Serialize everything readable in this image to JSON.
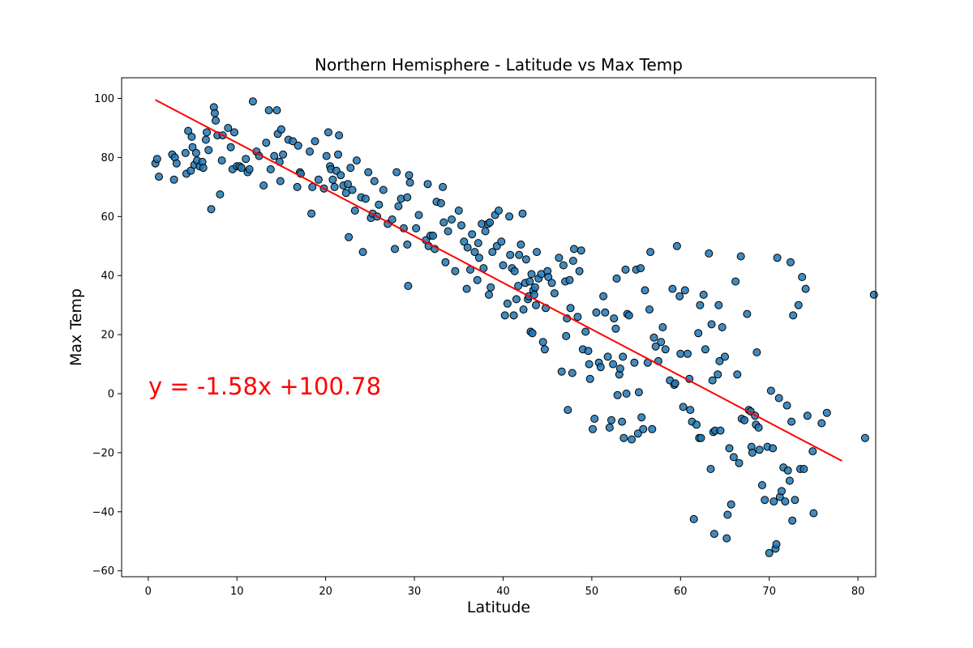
{
  "chart_data": {
    "type": "scatter",
    "title": "Northern Hemisphere - Latitude vs Max Temp",
    "xlabel": "Latitude",
    "ylabel": "Max Temp",
    "xlim": [
      -3,
      82
    ],
    "ylim": [
      -62,
      107
    ],
    "xticks": [
      0,
      10,
      20,
      30,
      40,
      50,
      60,
      70,
      80
    ],
    "yticks": [
      -60,
      -40,
      -20,
      0,
      20,
      40,
      60,
      80,
      100
    ],
    "grid": false,
    "point_color": "#1f77b4",
    "point_edge_color": "#000000",
    "line_color": "#ff0000",
    "regression": {
      "equation_text": "y = -1.58x +100.78",
      "slope": -1.58,
      "intercept": 100.78,
      "x_start": 0.8,
      "x_end": 78.2
    },
    "points": [
      [
        0.8,
        78
      ],
      [
        1,
        79.5
      ],
      [
        1.2,
        73.5
      ],
      [
        2.7,
        81
      ],
      [
        3,
        80
      ],
      [
        3.2,
        78
      ],
      [
        2.9,
        72.5
      ],
      [
        4.2,
        81.5
      ],
      [
        4.5,
        89
      ],
      [
        4.3,
        74.5
      ],
      [
        4.8,
        75.5
      ],
      [
        4.9,
        87
      ],
      [
        5,
        83.5
      ],
      [
        5.2,
        77.5
      ],
      [
        5.4,
        81.5
      ],
      [
        5.5,
        79
      ],
      [
        5.8,
        77
      ],
      [
        6.1,
        78.5
      ],
      [
        6.2,
        76.5
      ],
      [
        6.5,
        86
      ],
      [
        6.6,
        88.5
      ],
      [
        6.8,
        82.5
      ],
      [
        7.1,
        62.5
      ],
      [
        7.4,
        97
      ],
      [
        7.5,
        95
      ],
      [
        7.6,
        92.5
      ],
      [
        7.8,
        87.5
      ],
      [
        8.1,
        67.5
      ],
      [
        8.3,
        79
      ],
      [
        8.4,
        87.5
      ],
      [
        9,
        90
      ],
      [
        9.3,
        83.5
      ],
      [
        9.5,
        76
      ],
      [
        9.7,
        88.5
      ],
      [
        10,
        77
      ],
      [
        10.3,
        77
      ],
      [
        10.5,
        76.5
      ],
      [
        11,
        79.5
      ],
      [
        11.2,
        75
      ],
      [
        11.4,
        76
      ],
      [
        11.8,
        99
      ],
      [
        12.2,
        82
      ],
      [
        12.5,
        80.5
      ],
      [
        13,
        70.5
      ],
      [
        13.3,
        85
      ],
      [
        13.6,
        96
      ],
      [
        13.8,
        76
      ],
      [
        14.2,
        80.5
      ],
      [
        14.5,
        96
      ],
      [
        14.6,
        88
      ],
      [
        14.8,
        78.5
      ],
      [
        14.9,
        72
      ],
      [
        15,
        89.5
      ],
      [
        15.2,
        81
      ],
      [
        15.8,
        86
      ],
      [
        16.3,
        85.5
      ],
      [
        16.8,
        70
      ],
      [
        16.9,
        84
      ],
      [
        17.1,
        75
      ],
      [
        17.2,
        74.5
      ],
      [
        18.2,
        82
      ],
      [
        18.4,
        61
      ],
      [
        18.8,
        85.5
      ],
      [
        18.5,
        70
      ],
      [
        19.2,
        72.5
      ],
      [
        19.8,
        69.5
      ],
      [
        20.1,
        80.5
      ],
      [
        20.3,
        88.5
      ],
      [
        20.5,
        77
      ],
      [
        20.6,
        76
      ],
      [
        20.8,
        72.5
      ],
      [
        21,
        70
      ],
      [
        21.2,
        75.5
      ],
      [
        21.4,
        81
      ],
      [
        21.5,
        87.5
      ],
      [
        21.7,
        74
      ],
      [
        22,
        70.5
      ],
      [
        22.3,
        68
      ],
      [
        22.5,
        71
      ],
      [
        22.6,
        53
      ],
      [
        22.8,
        76.5
      ],
      [
        23,
        69
      ],
      [
        23.3,
        62
      ],
      [
        23.5,
        79
      ],
      [
        24,
        66.5
      ],
      [
        24.2,
        48
      ],
      [
        24.5,
        66
      ],
      [
        24.8,
        75
      ],
      [
        25.1,
        59.5
      ],
      [
        25.3,
        61
      ],
      [
        25.5,
        72
      ],
      [
        25.8,
        60
      ],
      [
        26,
        64
      ],
      [
        26.5,
        69
      ],
      [
        27,
        57.5
      ],
      [
        27.5,
        59
      ],
      [
        27.8,
        49
      ],
      [
        28,
        75
      ],
      [
        28.2,
        63.5
      ],
      [
        28.5,
        66
      ],
      [
        28.8,
        56
      ],
      [
        29.2,
        66.5
      ],
      [
        29.2,
        50.5
      ],
      [
        29.3,
        36.5
      ],
      [
        29.4,
        74
      ],
      [
        29.5,
        71.5
      ],
      [
        30.2,
        56
      ],
      [
        30.5,
        60.5
      ],
      [
        31.3,
        52
      ],
      [
        31.5,
        71
      ],
      [
        31.6,
        50
      ],
      [
        31.8,
        53.5
      ],
      [
        32.1,
        53.5
      ],
      [
        32.3,
        49
      ],
      [
        32.5,
        65
      ],
      [
        33,
        64.5
      ],
      [
        33.2,
        70
      ],
      [
        33.3,
        58
      ],
      [
        33.5,
        44.5
      ],
      [
        33.8,
        55
      ],
      [
        34.2,
        59
      ],
      [
        34.6,
        41.5
      ],
      [
        35,
        62
      ],
      [
        35.3,
        57
      ],
      [
        35.6,
        51.5
      ],
      [
        35.9,
        35.5
      ],
      [
        36,
        49.5
      ],
      [
        36.3,
        42
      ],
      [
        36.5,
        54
      ],
      [
        36.8,
        48
      ],
      [
        37.1,
        38.5
      ],
      [
        37.2,
        51
      ],
      [
        37.3,
        46
      ],
      [
        37.6,
        57.5
      ],
      [
        37.8,
        42.5
      ],
      [
        38,
        55
      ],
      [
        38.3,
        57.5
      ],
      [
        38.4,
        33.5
      ],
      [
        38.5,
        58
      ],
      [
        38.6,
        36
      ],
      [
        38.8,
        48
      ],
      [
        39.1,
        60.5
      ],
      [
        39.3,
        50
      ],
      [
        39.5,
        62
      ],
      [
        39.8,
        51.5
      ],
      [
        40,
        43.5
      ],
      [
        40.2,
        26.5
      ],
      [
        40.5,
        30.5
      ],
      [
        40.7,
        60
      ],
      [
        40.8,
        47
      ],
      [
        41,
        42.5
      ],
      [
        41.2,
        26.5
      ],
      [
        41.3,
        41.5
      ],
      [
        41.5,
        32
      ],
      [
        41.7,
        36.5
      ],
      [
        41.8,
        47
      ],
      [
        42,
        50.5
      ],
      [
        42.2,
        61
      ],
      [
        42.3,
        28.5
      ],
      [
        42.5,
        37.5
      ],
      [
        42.6,
        45.5
      ],
      [
        42.8,
        32
      ],
      [
        42.9,
        33
      ],
      [
        43,
        38
      ],
      [
        43.1,
        21
      ],
      [
        43.2,
        40.5
      ],
      [
        43.3,
        20.5
      ],
      [
        43.4,
        35
      ],
      [
        43.5,
        33.5
      ],
      [
        43.6,
        36
      ],
      [
        43.7,
        30
      ],
      [
        43.8,
        48
      ],
      [
        44,
        39
      ],
      [
        44.3,
        40.5
      ],
      [
        44.5,
        17.5
      ],
      [
        44.7,
        15
      ],
      [
        44.8,
        29
      ],
      [
        45,
        41.5
      ],
      [
        45.1,
        39.5
      ],
      [
        45.5,
        37.5
      ],
      [
        45.8,
        34
      ],
      [
        46.3,
        46
      ],
      [
        46.6,
        7.5
      ],
      [
        46.8,
        43.5
      ],
      [
        47,
        38
      ],
      [
        47.1,
        19.5
      ],
      [
        47.2,
        25.5
      ],
      [
        47.3,
        -5.5
      ],
      [
        47.5,
        38.5
      ],
      [
        47.6,
        29
      ],
      [
        47.8,
        7
      ],
      [
        47.9,
        45
      ],
      [
        48,
        49
      ],
      [
        48.4,
        26
      ],
      [
        48.6,
        41.5
      ],
      [
        48.8,
        48.5
      ],
      [
        49,
        15
      ],
      [
        49.3,
        21
      ],
      [
        49.6,
        14.5
      ],
      [
        49.7,
        10
      ],
      [
        49.8,
        5
      ],
      [
        50.1,
        -12
      ],
      [
        50.3,
        -8.5
      ],
      [
        50.5,
        27.5
      ],
      [
        50.8,
        10.5
      ],
      [
        51,
        9
      ],
      [
        51.3,
        33
      ],
      [
        51.5,
        27.5
      ],
      [
        51.8,
        12.5
      ],
      [
        52,
        -11.5
      ],
      [
        52.2,
        -9
      ],
      [
        52.4,
        10
      ],
      [
        52.5,
        25.5
      ],
      [
        52.7,
        22
      ],
      [
        52.8,
        39
      ],
      [
        52.9,
        -0.5
      ],
      [
        53.1,
        6.5
      ],
      [
        53.2,
        8.5
      ],
      [
        53.4,
        -9.5
      ],
      [
        53.5,
        12.5
      ],
      [
        53.6,
        -15
      ],
      [
        53.8,
        42
      ],
      [
        53.9,
        0
      ],
      [
        54,
        27
      ],
      [
        54.2,
        26.5
      ],
      [
        54.5,
        -15.5
      ],
      [
        54.8,
        10.5
      ],
      [
        55,
        42
      ],
      [
        55.2,
        -13.5
      ],
      [
        55.3,
        0.5
      ],
      [
        55.5,
        42.5
      ],
      [
        55.6,
        -8
      ],
      [
        55.8,
        -12
      ],
      [
        56,
        35
      ],
      [
        56.3,
        10.5
      ],
      [
        56.5,
        28.5
      ],
      [
        56.6,
        48
      ],
      [
        56.8,
        -12
      ],
      [
        57,
        19
      ],
      [
        57.2,
        16
      ],
      [
        57.5,
        11
      ],
      [
        57.8,
        17.5
      ],
      [
        58,
        22.5
      ],
      [
        58.3,
        15
      ],
      [
        58.8,
        4.5
      ],
      [
        59.1,
        35.5
      ],
      [
        59.3,
        3
      ],
      [
        59.4,
        3.5
      ],
      [
        59.6,
        50
      ],
      [
        59.9,
        33
      ],
      [
        60,
        13.5
      ],
      [
        60.3,
        -4.5
      ],
      [
        60.5,
        35
      ],
      [
        60.8,
        13.5
      ],
      [
        61,
        5
      ],
      [
        61.1,
        -5.5
      ],
      [
        61.3,
        -9.5
      ],
      [
        61.5,
        -42.5
      ],
      [
        61.8,
        -10.5
      ],
      [
        62,
        20.5
      ],
      [
        62.1,
        -15
      ],
      [
        62.2,
        30
      ],
      [
        62.3,
        -15
      ],
      [
        62.6,
        33.5
      ],
      [
        62.8,
        15
      ],
      [
        63.2,
        47.5
      ],
      [
        63.4,
        -25.5
      ],
      [
        63.5,
        23.5
      ],
      [
        63.6,
        4.5
      ],
      [
        63.7,
        -13
      ],
      [
        63.8,
        -47.5
      ],
      [
        63.9,
        -12.5
      ],
      [
        64.2,
        6.5
      ],
      [
        64.3,
        30
      ],
      [
        64.4,
        11
      ],
      [
        64.5,
        -12.5
      ],
      [
        64.7,
        22.5
      ],
      [
        65,
        12.5
      ],
      [
        65.2,
        -49
      ],
      [
        65.3,
        -41
      ],
      [
        65.5,
        -18.5
      ],
      [
        65.7,
        -37.5
      ],
      [
        66,
        -21.5
      ],
      [
        66.2,
        38
      ],
      [
        66.4,
        6.5
      ],
      [
        66.6,
        -23.5
      ],
      [
        66.8,
        46.5
      ],
      [
        66.9,
        -8.5
      ],
      [
        67.2,
        -9
      ],
      [
        67.5,
        27
      ],
      [
        67.7,
        -5.5
      ],
      [
        67.9,
        -6
      ],
      [
        68,
        -18
      ],
      [
        68.1,
        -20
      ],
      [
        68.4,
        -7.5
      ],
      [
        68.5,
        -10.5
      ],
      [
        68.6,
        14
      ],
      [
        68.8,
        -11.5
      ],
      [
        68.9,
        -19
      ],
      [
        69.2,
        -31
      ],
      [
        69.5,
        -36
      ],
      [
        69.8,
        -18
      ],
      [
        70,
        -54
      ],
      [
        70.2,
        1
      ],
      [
        70.4,
        -18.5
      ],
      [
        70.5,
        -36.5
      ],
      [
        70.7,
        -52.5
      ],
      [
        70.8,
        -51
      ],
      [
        70.9,
        46
      ],
      [
        71.1,
        -1.5
      ],
      [
        71.2,
        -35
      ],
      [
        71.4,
        -33
      ],
      [
        71.6,
        -25
      ],
      [
        71.8,
        -36.5
      ],
      [
        72,
        -4
      ],
      [
        72.1,
        -26
      ],
      [
        72.3,
        -29.5
      ],
      [
        72.4,
        44.5
      ],
      [
        72.5,
        -9.5
      ],
      [
        72.6,
        -43
      ],
      [
        72.7,
        26.5
      ],
      [
        72.9,
        -36
      ],
      [
        73.3,
        30
      ],
      [
        73.5,
        -25.5
      ],
      [
        73.7,
        39.5
      ],
      [
        73.9,
        -25.5
      ],
      [
        74.1,
        35.5
      ],
      [
        74.3,
        -7.5
      ],
      [
        74.9,
        -19.5
      ],
      [
        75,
        -40.5
      ],
      [
        75.9,
        -10
      ],
      [
        76.5,
        -6.5
      ],
      [
        80.8,
        -15
      ],
      [
        81.8,
        33.5
      ]
    ]
  }
}
